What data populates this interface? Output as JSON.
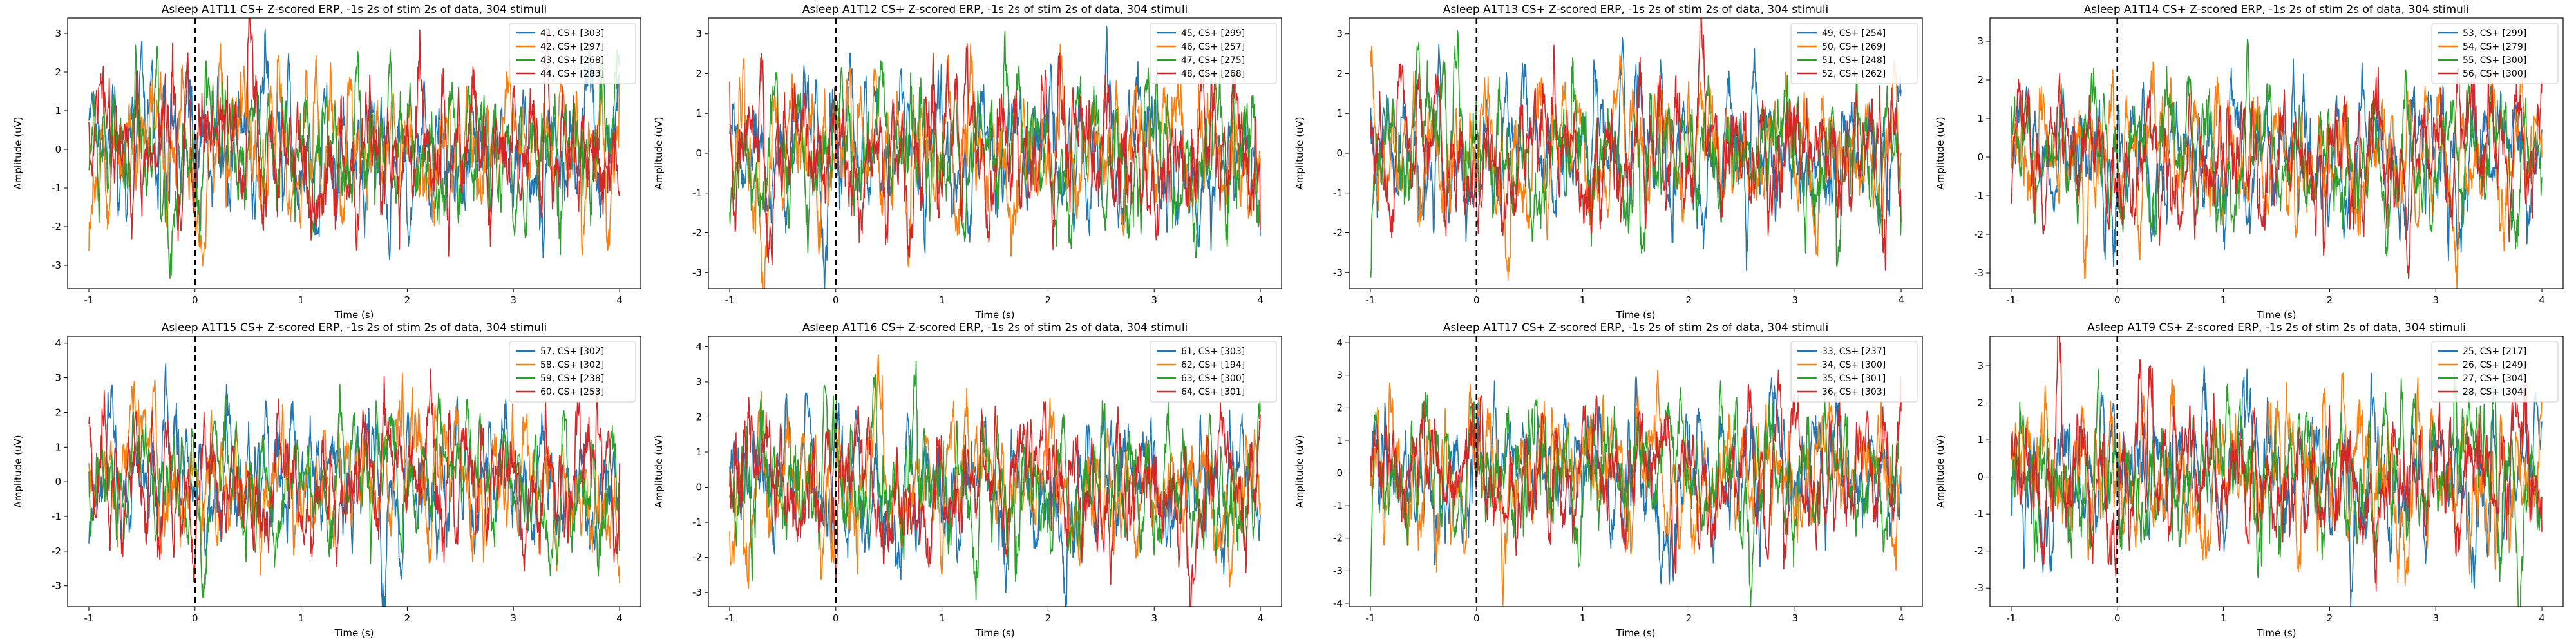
{
  "figure": {
    "stroke_colors": [
      "#1f77b4",
      "#ff7f0e",
      "#2ca02c",
      "#d62728"
    ]
  },
  "chart_data": [
    {
      "type": "line",
      "title": "Asleep A1T11 CS+ Z-scored ERP, -1s 2s of stim 2s of data, 304 stimuli",
      "xlabel": "Time (s)",
      "ylabel": "Amplitude (uV)",
      "xlim": [
        -1.2,
        4.2
      ],
      "ylim": [
        -3.6,
        3.4
      ],
      "xticks": [
        -1,
        0,
        1,
        2,
        3,
        4
      ],
      "yticks": [
        -3,
        -2,
        -1,
        0,
        1,
        2,
        3
      ],
      "stim_line_x": 0,
      "legend_placement": "top-right",
      "series_amplitude": 1.0,
      "series": [
        {
          "name": "41, CS+ [303]"
        },
        {
          "name": "42, CS+ [297]"
        },
        {
          "name": "43, CS+ [268]"
        },
        {
          "name": "44, CS+ [283]"
        }
      ]
    },
    {
      "type": "line",
      "title": "Asleep A1T12 CS+ Z-scored ERP, -1s 2s of stim 2s of data, 304 stimuli",
      "xlabel": "Time (s)",
      "ylabel": "Amplitude (uV)",
      "xlim": [
        -1.2,
        4.2
      ],
      "ylim": [
        -3.4,
        3.4
      ],
      "xticks": [
        -1,
        0,
        1,
        2,
        3,
        4
      ],
      "yticks": [
        -3,
        -2,
        -1,
        0,
        1,
        2,
        3
      ],
      "stim_line_x": 0,
      "legend_placement": "top-right",
      "series_amplitude": 1.0,
      "series": [
        {
          "name": "45, CS+ [299]"
        },
        {
          "name": "46, CS+ [257]"
        },
        {
          "name": "47, CS+ [275]"
        },
        {
          "name": "48, CS+ [268]"
        }
      ]
    },
    {
      "type": "line",
      "title": "Asleep A1T13 CS+ Z-scored ERP, -1s 2s of stim 2s of data, 304 stimuli",
      "xlabel": "Time (s)",
      "ylabel": "Amplitude (uV)",
      "xlim": [
        -1.2,
        4.2
      ],
      "ylim": [
        -3.4,
        3.4
      ],
      "xticks": [
        -1,
        0,
        1,
        2,
        3,
        4
      ],
      "yticks": [
        -3,
        -2,
        -1,
        0,
        1,
        2,
        3
      ],
      "stim_line_x": 0,
      "legend_placement": "top-right",
      "series_amplitude": 0.95,
      "series": [
        {
          "name": "49, CS+ [254]"
        },
        {
          "name": "50, CS+ [269]"
        },
        {
          "name": "51, CS+ [248]"
        },
        {
          "name": "52, CS+ [262]"
        }
      ]
    },
    {
      "type": "line",
      "title": "Asleep A1T14 CS+ Z-scored ERP, -1s 2s of stim 2s of data, 304 stimuli",
      "xlabel": "Time (s)",
      "ylabel": "Amplitude (uV)",
      "xlim": [
        -1.2,
        4.2
      ],
      "ylim": [
        -3.4,
        3.6
      ],
      "xticks": [
        -1,
        0,
        1,
        2,
        3,
        4
      ],
      "yticks": [
        -3,
        -2,
        -1,
        0,
        1,
        2,
        3
      ],
      "stim_line_x": 0,
      "legend_placement": "top-right",
      "series_amplitude": 0.95,
      "series": [
        {
          "name": "53, CS+ [299]"
        },
        {
          "name": "54, CS+ [279]"
        },
        {
          "name": "55, CS+ [300]"
        },
        {
          "name": "56, CS+ [300]"
        }
      ]
    },
    {
      "type": "line",
      "title": "Asleep A1T15 CS+ Z-scored ERP, -1s 2s of stim 2s of data, 304 stimuli",
      "xlabel": "Time (s)",
      "ylabel": "Amplitude (uV)",
      "xlim": [
        -1.2,
        4.2
      ],
      "ylim": [
        -3.6,
        4.2
      ],
      "xticks": [
        -1,
        0,
        1,
        2,
        3,
        4
      ],
      "yticks": [
        -3,
        -2,
        -1,
        0,
        1,
        2,
        3,
        4
      ],
      "stim_line_x": 0,
      "legend_placement": "top-right",
      "series_amplitude": 1.05,
      "series": [
        {
          "name": "57, CS+ [302]"
        },
        {
          "name": "58, CS+ [302]"
        },
        {
          "name": "59, CS+ [238]"
        },
        {
          "name": "60, CS+ [253]"
        }
      ]
    },
    {
      "type": "line",
      "title": "Asleep A1T16 CS+ Z-scored ERP, -1s 2s of stim 2s of data, 304 stimuli",
      "xlabel": "Time (s)",
      "ylabel": "Amplitude (uV)",
      "xlim": [
        -1.2,
        4.2
      ],
      "ylim": [
        -3.4,
        4.3
      ],
      "xticks": [
        -1,
        0,
        1,
        2,
        3,
        4
      ],
      "yticks": [
        -3,
        -2,
        -1,
        0,
        1,
        2,
        3,
        4
      ],
      "stim_line_x": 0,
      "legend_placement": "top-right",
      "series_amplitude": 1.05,
      "series": [
        {
          "name": "61, CS+ [303]"
        },
        {
          "name": "62, CS+ [194]"
        },
        {
          "name": "63, CS+ [300]"
        },
        {
          "name": "64, CS+ [301]"
        }
      ]
    },
    {
      "type": "line",
      "title": "Asleep A1T17 CS+ Z-scored ERP, -1s 2s of stim 2s of data, 304 stimuli",
      "xlabel": "Time (s)",
      "ylabel": "Amplitude (uV)",
      "xlim": [
        -1.2,
        4.2
      ],
      "ylim": [
        -4.1,
        4.2
      ],
      "xticks": [
        -1,
        0,
        1,
        2,
        3,
        4
      ],
      "yticks": [
        -4,
        -3,
        -2,
        -1,
        0,
        1,
        2,
        3,
        4
      ],
      "stim_line_x": 0,
      "legend_placement": "top-right",
      "series_amplitude": 1.1,
      "series": [
        {
          "name": "33, CS+ [237]"
        },
        {
          "name": "34, CS+ [300]"
        },
        {
          "name": "35, CS+ [301]"
        },
        {
          "name": "36, CS+ [303]"
        }
      ]
    },
    {
      "type": "line",
      "title": "Asleep A1T9 CS+ Z-scored ERP, -1s 2s of stim 2s of data, 304 stimuli",
      "xlabel": "Time (s)",
      "ylabel": "Amplitude (uV)",
      "xlim": [
        -1.2,
        4.2
      ],
      "ylim": [
        -3.5,
        3.8
      ],
      "xticks": [
        -1,
        0,
        1,
        2,
        3,
        4
      ],
      "yticks": [
        -3,
        -2,
        -1,
        0,
        1,
        2,
        3
      ],
      "stim_line_x": 0,
      "legend_placement": "top-right",
      "series_amplitude": 1.05,
      "series": [
        {
          "name": "25, CS+ [217]"
        },
        {
          "name": "26, CS+ [249]"
        },
        {
          "name": "27, CS+ [304]"
        },
        {
          "name": "28, CS+ [304]"
        }
      ]
    }
  ]
}
